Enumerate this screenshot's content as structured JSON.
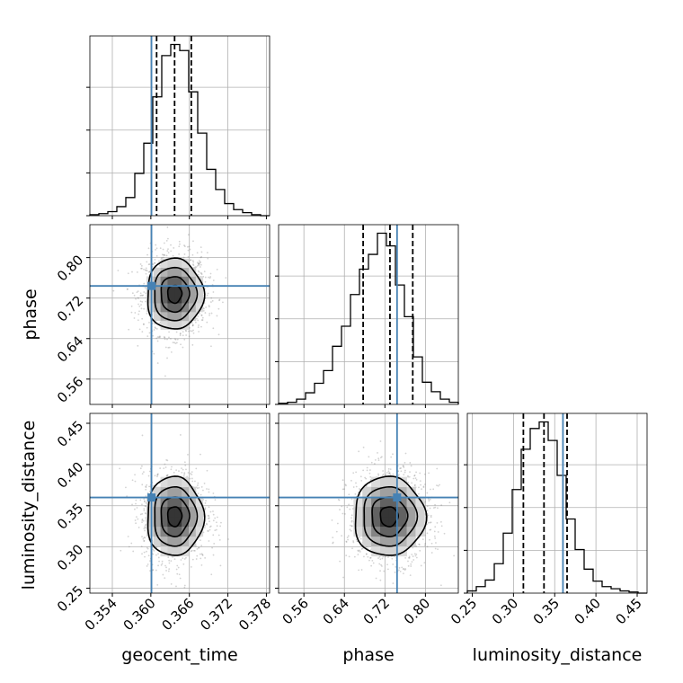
{
  "chart_data": {
    "type": "corner",
    "parameters": [
      "geocent_time",
      "phase",
      "luminosity_distance"
    ],
    "labels": {
      "x": [
        "geocent_time",
        "phase",
        "luminosity_distance"
      ],
      "y": [
        "",
        "phase",
        "luminosity_distance"
      ]
    },
    "ranges": {
      "geocent_time": [
        0.3505,
        0.3785
      ],
      "phase": [
        0.51,
        0.865
      ],
      "luminosity_distance": [
        0.244,
        0.462
      ]
    },
    "ticks": {
      "geocent_time": [
        "0.354",
        "0.360",
        "0.366",
        "0.372",
        "0.378"
      ],
      "phase": [
        "0.56",
        "0.64",
        "0.72",
        "0.80"
      ],
      "luminosity_distance_x": [
        "0.25",
        "0.30",
        "0.35",
        "0.40",
        "0.45"
      ],
      "luminosity_distance_y": [
        "0.25",
        "0.30",
        "0.35",
        "0.40",
        "0.45"
      ]
    },
    "truths": {
      "geocent_time": 0.3601,
      "phase": 0.744,
      "luminosity_distance": 0.36
    },
    "quantiles": {
      "geocent_time": [
        0.3609,
        0.3637,
        0.3663
      ],
      "phase": [
        0.677,
        0.73,
        0.775
      ],
      "luminosity_distance": [
        0.312,
        0.337,
        0.365
      ]
    },
    "histograms": {
      "geocent_time": {
        "edges": [
          0.3505,
          0.3519,
          0.3533,
          0.3547,
          0.3561,
          0.3575,
          0.3589,
          0.3603,
          0.3617,
          0.3631,
          0.3645,
          0.3659,
          0.3673,
          0.3687,
          0.3701,
          0.3715,
          0.3729,
          0.3743,
          0.3757,
          0.3771,
          0.3785
        ],
        "counts": [
          1,
          2,
          4,
          9,
          18,
          42,
          72,
          118,
          159,
          170,
          164,
          123,
          82,
          46,
          26,
          12,
          6,
          3,
          1,
          0
        ]
      },
      "phase": {
        "edges": [
          0.51,
          0.52775,
          0.5455,
          0.56325,
          0.581,
          0.59875,
          0.6165,
          0.63425,
          0.652,
          0.66975,
          0.6875,
          0.70525,
          0.723,
          0.74075,
          0.7585,
          0.77625,
          0.794,
          0.81175,
          0.8295,
          0.84725,
          0.865
        ],
        "counts": [
          1,
          2,
          5,
          11,
          20,
          32,
          55,
          74,
          104,
          128,
          142,
          162,
          150,
          113,
          83,
          45,
          21,
          12,
          5,
          2
        ]
      },
      "luminosity_distance": {
        "edges": [
          0.244,
          0.2549,
          0.2658,
          0.2767,
          0.2876,
          0.2985,
          0.3094,
          0.3203,
          0.3312,
          0.3421,
          0.353,
          0.3639,
          0.3748,
          0.3857,
          0.3966,
          0.4075,
          0.4184,
          0.4293,
          0.4402,
          0.4511,
          0.462
        ],
        "counts": [
          2,
          6,
          12,
          27,
          55,
          95,
          132,
          151,
          157,
          140,
          108,
          68,
          40,
          22,
          11,
          6,
          4,
          2,
          1,
          0
        ]
      }
    },
    "posterior_2d": {
      "phase_vs_geocent_time": {
        "mean": [
          0.3637,
          0.728
        ],
        "sigma": [
          0.0022,
          0.035
        ]
      },
      "luminosity_distance_vs_geocent_time": {
        "mean": [
          0.3637,
          0.337
        ],
        "sigma": [
          0.0022,
          0.024
        ]
      },
      "luminosity_distance_vs_phase": {
        "mean": [
          0.728,
          0.337
        ],
        "sigma": [
          0.035,
          0.024
        ]
      }
    },
    "grid": true,
    "colors": {
      "truth": "#4682b4",
      "histogram": "#000000",
      "quantile": "#000000",
      "contour": "#000000",
      "samples": "#808080",
      "grid": "#b0b0b0"
    }
  }
}
